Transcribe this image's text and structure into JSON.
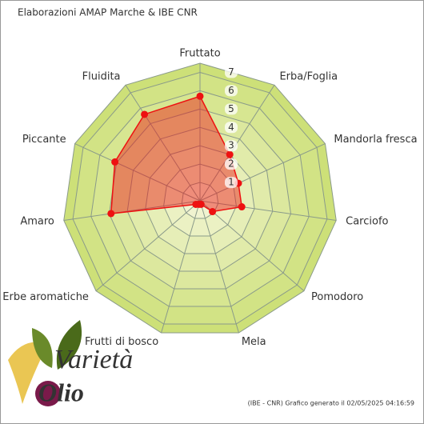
{
  "chart_data": {
    "type": "radar",
    "title": "Elaborazioni AMAP Marche & IBE CNR",
    "categories": [
      "Fruttato",
      "Erba/Foglia",
      "Mandorla fresca",
      "Carciofo",
      "Pomodoro",
      "Mela",
      "Frutti di bosco",
      "Erbe aromatiche",
      "Amaro",
      "Piccante",
      "Fluidita"
    ],
    "series": [
      {
        "color": "#ee1111",
        "values": [
          5.7,
          3.0,
          2.3,
          2.3,
          0.9,
          0.2,
          0.2,
          0.3,
          4.9,
          5.1,
          5.6
        ]
      }
    ],
    "ylim": [
      0,
      7.5
    ],
    "yticks": [
      1,
      2,
      3,
      4,
      5,
      6,
      7
    ],
    "footer": "(IBE - CNR) Grafico generato il 02/05/2025 04:16:59",
    "logo": {
      "line1": "Varietà",
      "line2": "Olio"
    }
  }
}
